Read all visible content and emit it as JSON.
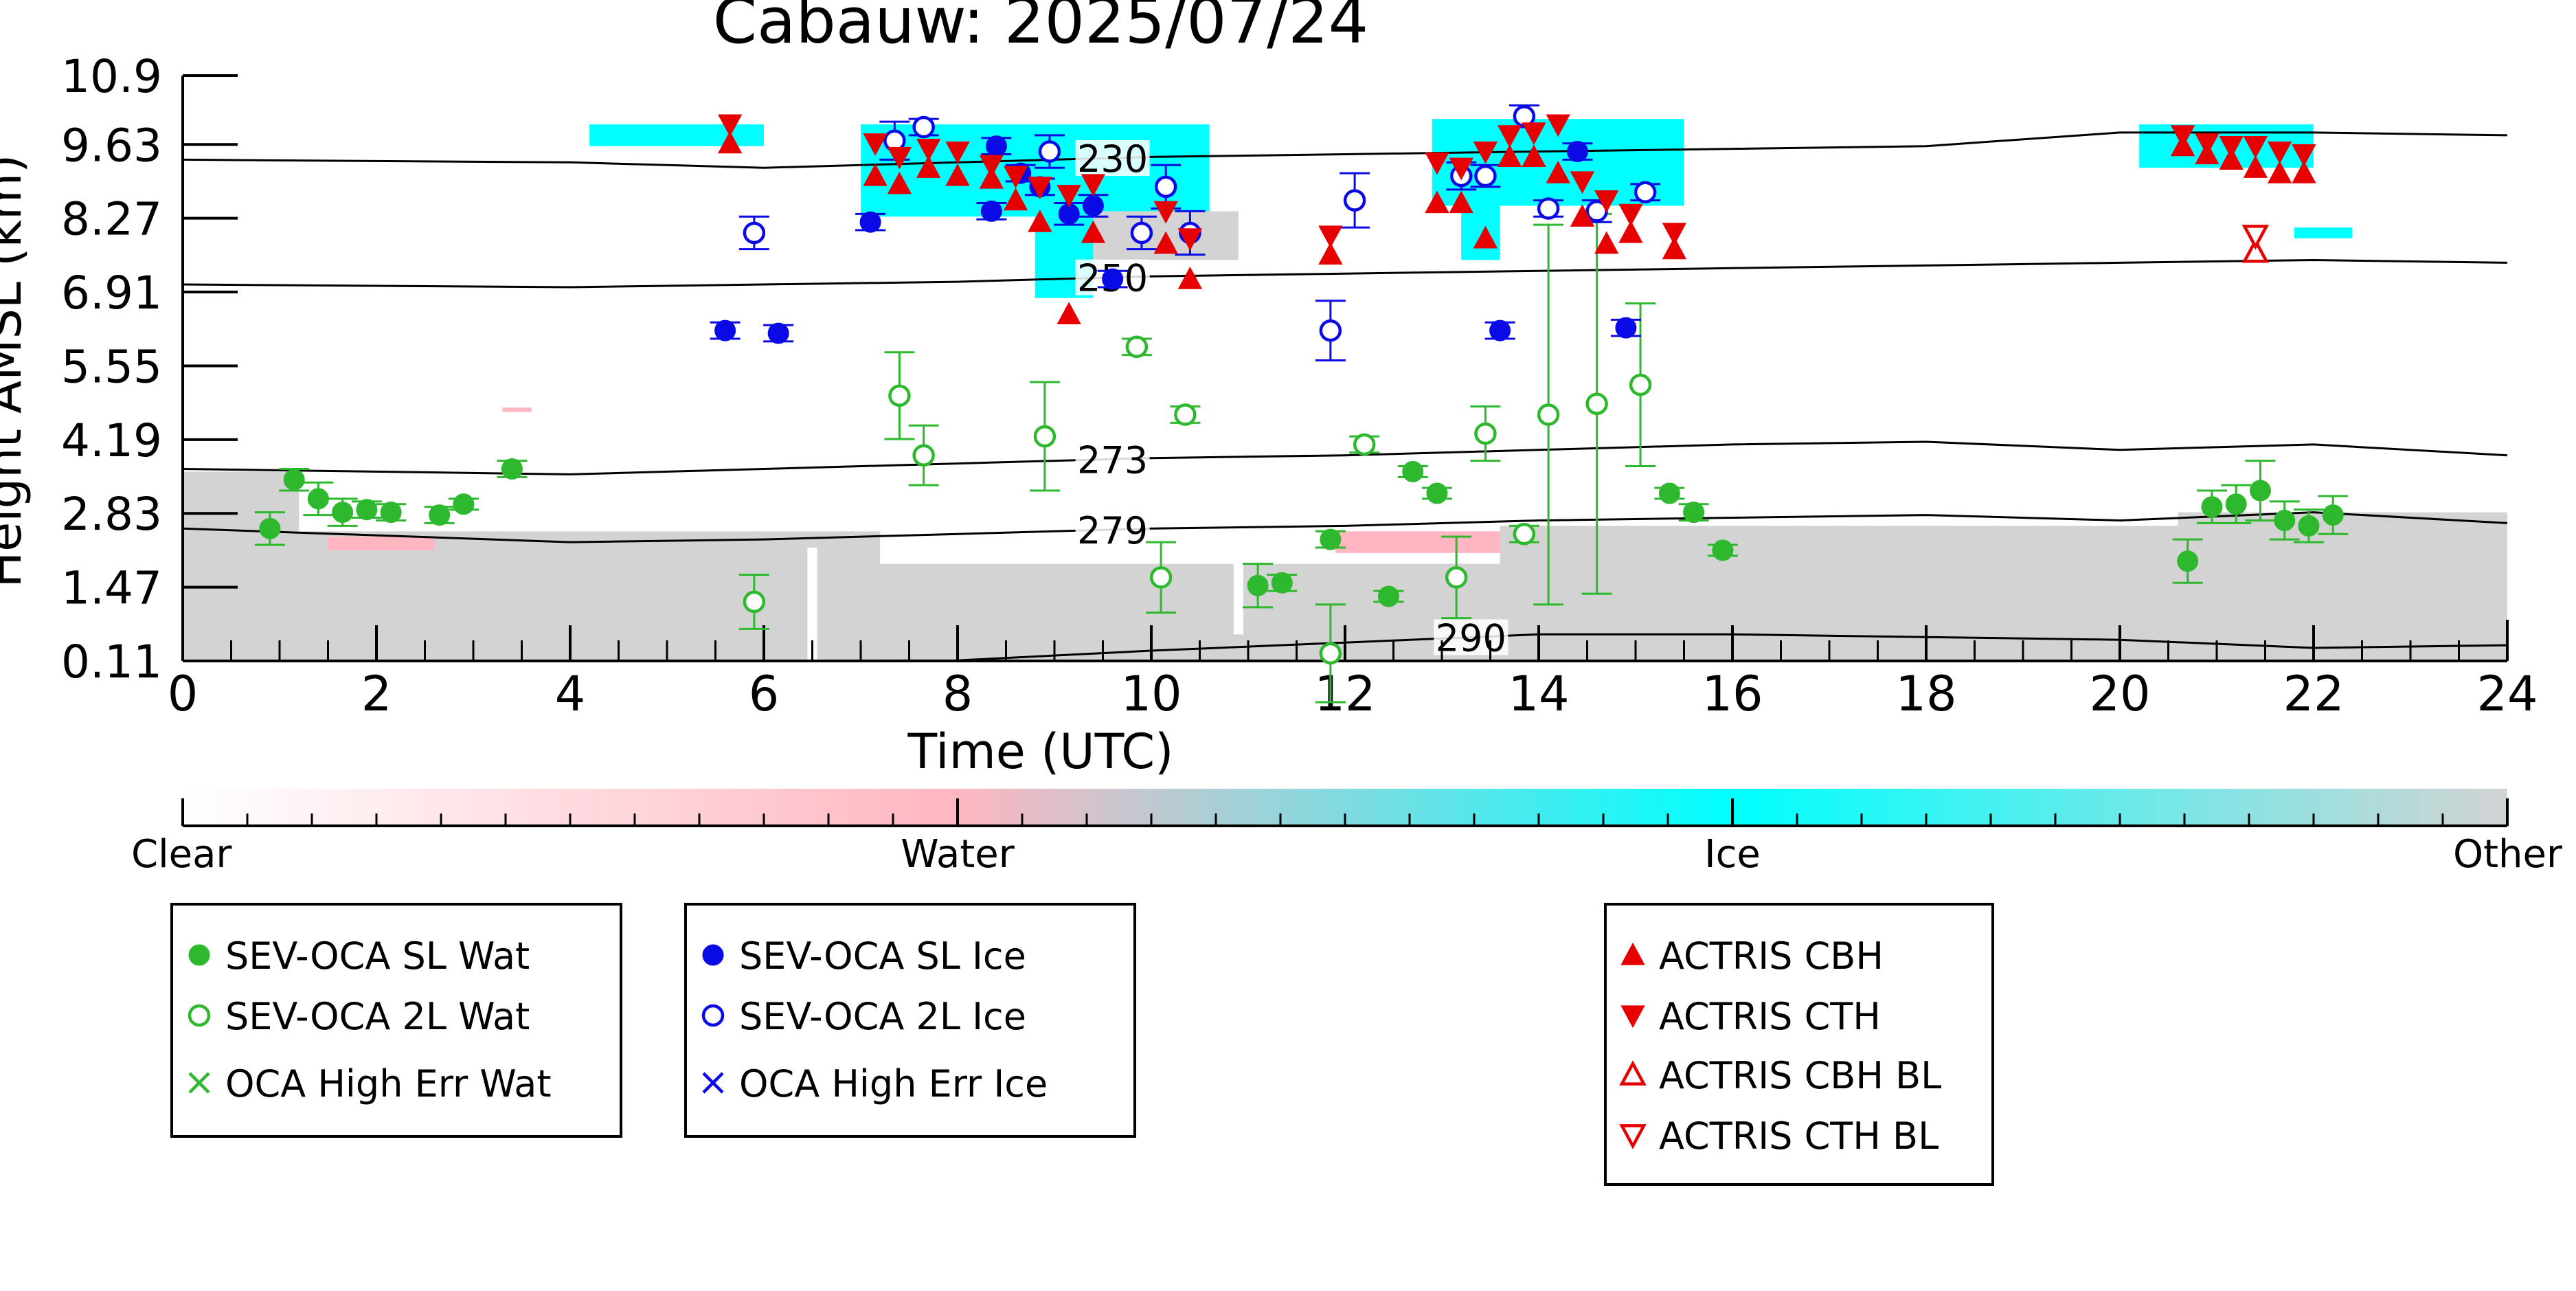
{
  "chart_data": {
    "type": "scatter",
    "title": "Cabauw: 2025/07/24",
    "xlabel": "Time (UTC)",
    "ylabel": "Height AMSL (km)",
    "xlim": [
      0,
      24
    ],
    "ylim": [
      0.11,
      10.9
    ],
    "x_ticks": [
      "0",
      "2",
      "4",
      "6",
      "8",
      "10",
      "12",
      "14",
      "16",
      "18",
      "20",
      "22",
      "24"
    ],
    "y_ticks": [
      "0.11",
      "1.47",
      "2.83",
      "4.19",
      "5.55",
      "6.91",
      "8.27",
      "9.63",
      "10.9"
    ],
    "isotherms": [
      {
        "label": "230",
        "label_x": 9.6,
        "points": [
          [
            0,
            9.35
          ],
          [
            4,
            9.3
          ],
          [
            6,
            9.2
          ],
          [
            8,
            9.3
          ],
          [
            10,
            9.4
          ],
          [
            12,
            9.45
          ],
          [
            14,
            9.5
          ],
          [
            16,
            9.55
          ],
          [
            18,
            9.6
          ],
          [
            20,
            9.85
          ],
          [
            22,
            9.85
          ],
          [
            24,
            9.8
          ]
        ]
      },
      {
        "label": "250",
        "label_x": 9.6,
        "points": [
          [
            0,
            7.05
          ],
          [
            4,
            7.0
          ],
          [
            6,
            7.05
          ],
          [
            8,
            7.1
          ],
          [
            10,
            7.2
          ],
          [
            12,
            7.25
          ],
          [
            14,
            7.3
          ],
          [
            16,
            7.35
          ],
          [
            18,
            7.4
          ],
          [
            20,
            7.45
          ],
          [
            22,
            7.5
          ],
          [
            24,
            7.45
          ]
        ]
      },
      {
        "label": "273",
        "label_x": 9.6,
        "points": [
          [
            0,
            3.65
          ],
          [
            4,
            3.55
          ],
          [
            6,
            3.65
          ],
          [
            8,
            3.75
          ],
          [
            10,
            3.85
          ],
          [
            12,
            3.9
          ],
          [
            14,
            4.0
          ],
          [
            16,
            4.1
          ],
          [
            18,
            4.15
          ],
          [
            20,
            4.0
          ],
          [
            22,
            4.1
          ],
          [
            24,
            3.9
          ]
        ]
      },
      {
        "label": "279",
        "label_x": 9.6,
        "points": [
          [
            0,
            2.55
          ],
          [
            4,
            2.3
          ],
          [
            6,
            2.35
          ],
          [
            8,
            2.45
          ],
          [
            10,
            2.55
          ],
          [
            12,
            2.6
          ],
          [
            14,
            2.7
          ],
          [
            16,
            2.75
          ],
          [
            18,
            2.8
          ],
          [
            20,
            2.7
          ],
          [
            22,
            2.85
          ],
          [
            24,
            2.65
          ]
        ]
      },
      {
        "label": "290",
        "label_x": 13.3,
        "points": [
          [
            6,
            0.11
          ],
          [
            8,
            0.12
          ],
          [
            10,
            0.3
          ],
          [
            12,
            0.45
          ],
          [
            14,
            0.6
          ],
          [
            16,
            0.6
          ],
          [
            18,
            0.55
          ],
          [
            20,
            0.5
          ],
          [
            22,
            0.35
          ],
          [
            24,
            0.4
          ]
        ]
      }
    ],
    "colorbar": {
      "labels": [
        "Clear",
        "Water",
        "Ice",
        "Other"
      ],
      "colors": [
        "#ffffff",
        "#ffb6c1",
        "#00ffff",
        "#d3d3d3"
      ]
    },
    "series": [
      {
        "name": "SEV-OCA SL Wat",
        "marker": "circle-filled",
        "color": "#2eb82e",
        "points": [
          {
            "x": 0.9,
            "y": 2.55,
            "err": 0.3
          },
          {
            "x": 1.15,
            "y": 3.45,
            "err": 0.2
          },
          {
            "x": 1.4,
            "y": 3.1,
            "err": 0.3
          },
          {
            "x": 1.65,
            "y": 2.85,
            "err": 0.25
          },
          {
            "x": 1.9,
            "y": 2.9,
            "err": 0.15
          },
          {
            "x": 2.15,
            "y": 2.85,
            "err": 0.15
          },
          {
            "x": 2.65,
            "y": 2.8,
            "err": 0.15
          },
          {
            "x": 2.9,
            "y": 3.0,
            "err": 0.1
          },
          {
            "x": 3.4,
            "y": 3.65,
            "err": 0.15
          },
          {
            "x": 11.1,
            "y": 1.5,
            "err": 0.4
          },
          {
            "x": 11.35,
            "y": 1.55,
            "err": 0.15
          },
          {
            "x": 11.85,
            "y": 2.35,
            "err": 0.15
          },
          {
            "x": 12.45,
            "y": 1.3,
            "err": 0.1
          },
          {
            "x": 12.7,
            "y": 3.6,
            "err": 0.1
          },
          {
            "x": 12.95,
            "y": 3.2,
            "err": 0.1
          },
          {
            "x": 15.35,
            "y": 3.2,
            "err": 0.1
          },
          {
            "x": 15.6,
            "y": 2.85,
            "err": 0.15
          },
          {
            "x": 15.9,
            "y": 2.15,
            "err": 0.1
          },
          {
            "x": 20.7,
            "y": 1.95,
            "err": 0.4
          },
          {
            "x": 20.95,
            "y": 2.95,
            "err": 0.3
          },
          {
            "x": 21.2,
            "y": 3.0,
            "err": 0.35
          },
          {
            "x": 21.45,
            "y": 3.25,
            "err": 0.55
          },
          {
            "x": 21.7,
            "y": 2.7,
            "err": 0.35
          },
          {
            "x": 21.95,
            "y": 2.6,
            "err": 0.3
          },
          {
            "x": 22.2,
            "y": 2.8,
            "err": 0.35
          }
        ]
      },
      {
        "name": "SEV-OCA 2L Wat",
        "marker": "circle-open",
        "color": "#2eb82e",
        "points": [
          {
            "x": 5.9,
            "y": 1.2,
            "err": 0.5
          },
          {
            "x": 7.4,
            "y": 5.0,
            "err": 0.8
          },
          {
            "x": 7.65,
            "y": 3.9,
            "err": 0.55
          },
          {
            "x": 8.9,
            "y": 4.25,
            "err": 1.0
          },
          {
            "x": 9.85,
            "y": 5.9,
            "err": 0.15
          },
          {
            "x": 10.35,
            "y": 4.65,
            "err": 0.15
          },
          {
            "x": 10.1,
            "y": 1.65,
            "err": 0.65
          },
          {
            "x": 11.85,
            "y": 0.25,
            "err": 0.9
          },
          {
            "x": 12.2,
            "y": 4.1,
            "err": 0.15
          },
          {
            "x": 13.15,
            "y": 1.65,
            "err": 0.75
          },
          {
            "x": 13.45,
            "y": 4.3,
            "err": 0.5
          },
          {
            "x": 13.85,
            "y": 2.45,
            "err": 0.15
          },
          {
            "x": 14.1,
            "y": 4.65,
            "err": 3.5
          },
          {
            "x": 14.6,
            "y": 4.85,
            "err": 3.5
          },
          {
            "x": 15.05,
            "y": 5.2,
            "err": 1.5
          }
        ]
      },
      {
        "name": "OCA High Err Wat",
        "marker": "x",
        "color": "#2eb82e",
        "points": []
      },
      {
        "name": "SEV-OCA SL Ice",
        "marker": "circle-filled",
        "color": "#0a0ae6",
        "points": [
          {
            "x": 5.6,
            "y": 6.2,
            "err": 0.15
          },
          {
            "x": 6.15,
            "y": 6.15,
            "err": 0.15
          },
          {
            "x": 7.1,
            "y": 8.2,
            "err": 0.15
          },
          {
            "x": 8.35,
            "y": 8.4,
            "err": 0.15
          },
          {
            "x": 8.85,
            "y": 8.85,
            "err": 0.15
          },
          {
            "x": 8.65,
            "y": 9.1,
            "err": 0.15
          },
          {
            "x": 8.4,
            "y": 9.6,
            "err": 0.15
          },
          {
            "x": 9.15,
            "y": 8.35,
            "err": 0.2
          },
          {
            "x": 9.4,
            "y": 8.5,
            "err": 0.2
          },
          {
            "x": 9.6,
            "y": 7.15,
            "err": 0.15
          },
          {
            "x": 13.6,
            "y": 6.2,
            "err": 0.15
          },
          {
            "x": 14.4,
            "y": 9.5,
            "err": 0.15
          },
          {
            "x": 14.9,
            "y": 6.25,
            "err": 0.15
          }
        ]
      },
      {
        "name": "SEV-OCA 2L Ice",
        "marker": "circle-open",
        "color": "#0a0ae6",
        "points": [
          {
            "x": 5.9,
            "y": 8.0,
            "err": 0.3
          },
          {
            "x": 7.35,
            "y": 9.7,
            "err": 0.35
          },
          {
            "x": 7.65,
            "y": 9.95,
            "err": 0.15
          },
          {
            "x": 8.95,
            "y": 9.5,
            "err": 0.3
          },
          {
            "x": 9.9,
            "y": 8.0,
            "err": 0.3
          },
          {
            "x": 10.15,
            "y": 8.85,
            "err": 0.4
          },
          {
            "x": 10.4,
            "y": 8.0,
            "err": 0.4
          },
          {
            "x": 11.85,
            "y": 6.2,
            "err": 0.55
          },
          {
            "x": 12.1,
            "y": 8.6,
            "err": 0.5
          },
          {
            "x": 13.2,
            "y": 9.05,
            "err": 0.25
          },
          {
            "x": 13.45,
            "y": 9.05,
            "err": 0.2
          },
          {
            "x": 13.85,
            "y": 10.15,
            "err": 0.2
          },
          {
            "x": 14.1,
            "y": 8.45,
            "err": 0.15
          },
          {
            "x": 14.6,
            "y": 8.4,
            "err": 0.2
          },
          {
            "x": 15.1,
            "y": 8.75,
            "err": 0.15
          }
        ]
      },
      {
        "name": "OCA High Err Ice",
        "marker": "x",
        "color": "#0a0ae6",
        "points": []
      },
      {
        "name": "ACTRIS CBH",
        "marker": "triangle-up-filled",
        "color": "#e60000",
        "points": [
          {
            "x": 5.65,
            "y": 9.65
          },
          {
            "x": 7.15,
            "y": 9.05
          },
          {
            "x": 7.4,
            "y": 8.9
          },
          {
            "x": 7.7,
            "y": 9.2
          },
          {
            "x": 8.0,
            "y": 9.05
          },
          {
            "x": 8.35,
            "y": 9.0
          },
          {
            "x": 8.6,
            "y": 8.6
          },
          {
            "x": 8.85,
            "y": 8.2
          },
          {
            "x": 9.15,
            "y": 6.5
          },
          {
            "x": 9.4,
            "y": 8.0
          },
          {
            "x": 10.15,
            "y": 7.8
          },
          {
            "x": 10.4,
            "y": 7.15
          },
          {
            "x": 11.85,
            "y": 7.6
          },
          {
            "x": 12.95,
            "y": 8.55
          },
          {
            "x": 13.2,
            "y": 8.55
          },
          {
            "x": 13.45,
            "y": 7.9
          },
          {
            "x": 13.7,
            "y": 9.4
          },
          {
            "x": 13.95,
            "y": 9.4
          },
          {
            "x": 14.2,
            "y": 9.1
          },
          {
            "x": 14.45,
            "y": 8.3
          },
          {
            "x": 14.7,
            "y": 7.8
          },
          {
            "x": 14.95,
            "y": 8.0
          },
          {
            "x": 15.4,
            "y": 7.7
          },
          {
            "x": 20.65,
            "y": 9.6
          },
          {
            "x": 20.9,
            "y": 9.45
          },
          {
            "x": 21.15,
            "y": 9.35
          },
          {
            "x": 21.4,
            "y": 9.2
          },
          {
            "x": 21.65,
            "y": 9.1
          },
          {
            "x": 21.9,
            "y": 9.1
          }
        ]
      },
      {
        "name": "ACTRIS CTH",
        "marker": "triangle-down-filled",
        "color": "#e60000",
        "points": [
          {
            "x": 5.65,
            "y": 10.0
          },
          {
            "x": 7.15,
            "y": 9.65
          },
          {
            "x": 7.4,
            "y": 9.4
          },
          {
            "x": 7.7,
            "y": 9.55
          },
          {
            "x": 8.0,
            "y": 9.5
          },
          {
            "x": 8.35,
            "y": 9.25
          },
          {
            "x": 8.6,
            "y": 9.05
          },
          {
            "x": 8.85,
            "y": 8.85
          },
          {
            "x": 9.15,
            "y": 8.7
          },
          {
            "x": 9.4,
            "y": 8.9
          },
          {
            "x": 10.15,
            "y": 8.4
          },
          {
            "x": 10.4,
            "y": 7.9
          },
          {
            "x": 11.85,
            "y": 7.95
          },
          {
            "x": 12.95,
            "y": 9.3
          },
          {
            "x": 13.2,
            "y": 9.2
          },
          {
            "x": 13.45,
            "y": 9.5
          },
          {
            "x": 13.7,
            "y": 9.8
          },
          {
            "x": 13.95,
            "y": 9.85
          },
          {
            "x": 14.2,
            "y": 10.0
          },
          {
            "x": 14.45,
            "y": 8.95
          },
          {
            "x": 14.7,
            "y": 8.6
          },
          {
            "x": 14.95,
            "y": 8.35
          },
          {
            "x": 15.4,
            "y": 8.0
          },
          {
            "x": 20.65,
            "y": 9.8
          },
          {
            "x": 20.9,
            "y": 9.65
          },
          {
            "x": 21.15,
            "y": 9.6
          },
          {
            "x": 21.4,
            "y": 9.6
          },
          {
            "x": 21.65,
            "y": 9.5
          },
          {
            "x": 21.9,
            "y": 9.45
          }
        ]
      },
      {
        "name": "ACTRIS CBH BL",
        "marker": "triangle-up-open",
        "color": "#e60000",
        "points": [
          {
            "x": 21.4,
            "y": 7.65
          }
        ]
      },
      {
        "name": "ACTRIS CTH BL",
        "marker": "triangle-down-open",
        "color": "#e60000",
        "points": [
          {
            "x": 21.4,
            "y": 7.95
          }
        ]
      }
    ],
    "legend_groups": [
      {
        "entries": [
          "SEV-OCA SL Wat",
          "SEV-OCA 2L Wat",
          "OCA High Err Wat"
        ]
      },
      {
        "entries": [
          "SEV-OCA SL Ice",
          "SEV-OCA 2L Ice",
          "OCA High Err Ice"
        ]
      },
      {
        "entries": [
          "ACTRIS CBH",
          "ACTRIS CTH",
          "ACTRIS CBH BL",
          "ACTRIS CTH BL"
        ]
      }
    ],
    "grid": false
  }
}
